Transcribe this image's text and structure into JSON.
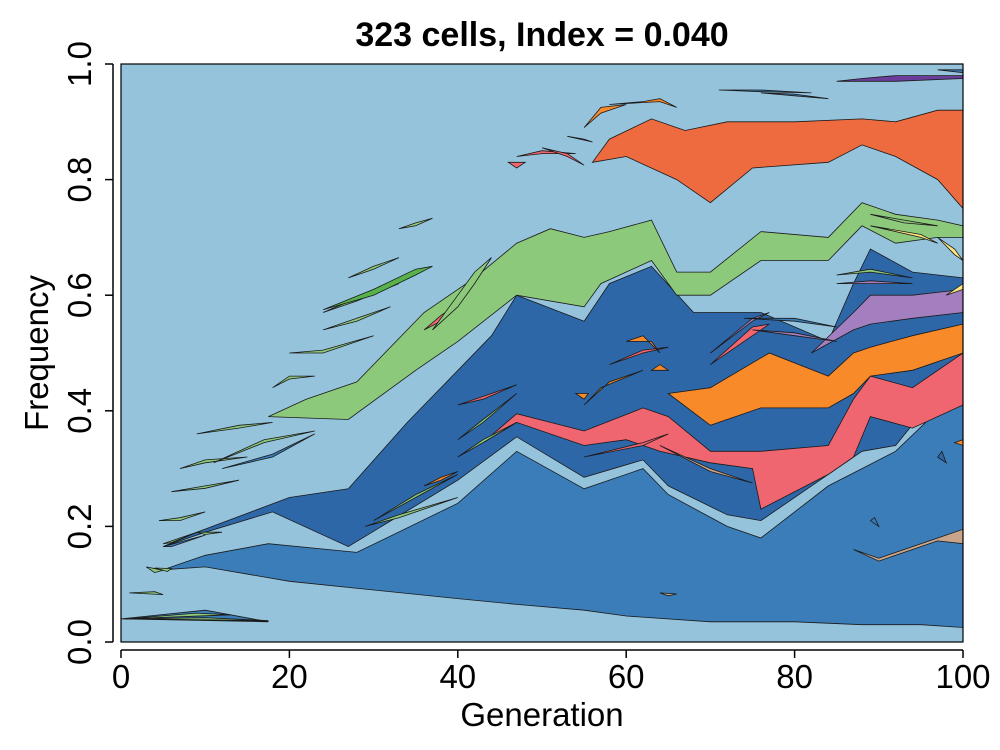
{
  "chart_data": {
    "type": "area",
    "subtype": "muller-plot",
    "title": "323 cells, Index = 0.040",
    "xlabel": "Generation",
    "ylabel": "Frequency",
    "xlim": [
      0,
      100
    ],
    "ylim": [
      0,
      1
    ],
    "x_ticks": [
      "0",
      "20",
      "40",
      "60",
      "80",
      "100"
    ],
    "y_ticks": [
      "0.0",
      "0.2",
      "0.4",
      "0.6",
      "0.8",
      "1.0"
    ],
    "grid": false,
    "legend": "none",
    "background_color": "#95c3dc",
    "series": [
      {
        "color": "#3a7db8",
        "lower": [
          [
            0,
            0.04
          ],
          [
            17.5,
            0.035
          ],
          [
            10,
            0.055
          ],
          [
            0,
            0.04
          ]
        ],
        "upper": []
      },
      {
        "color": "#3a7db8",
        "lower": [
          [
            5,
            0.125
          ],
          [
            10,
            0.13
          ],
          [
            20,
            0.105
          ],
          [
            30,
            0.09
          ],
          [
            40,
            0.075
          ],
          [
            47,
            0.065
          ],
          [
            55,
            0.055
          ],
          [
            60,
            0.045
          ],
          [
            70,
            0.035
          ],
          [
            80,
            0.035
          ],
          [
            88,
            0.03
          ],
          [
            95,
            0.03
          ],
          [
            100,
            0.025
          ]
        ],
        "upper": [
          [
            5,
            0.125
          ],
          [
            10,
            0.15
          ],
          [
            17.5,
            0.17
          ],
          [
            28,
            0.155
          ],
          [
            40,
            0.24
          ],
          [
            47,
            0.33
          ],
          [
            55,
            0.265
          ],
          [
            62,
            0.3
          ],
          [
            65,
            0.255
          ],
          [
            72,
            0.2
          ],
          [
            76,
            0.18
          ],
          [
            84,
            0.27
          ],
          [
            88,
            0.3
          ],
          [
            92,
            0.33
          ],
          [
            97,
            0.4
          ],
          [
            100,
            0.42
          ]
        ]
      },
      {
        "color": "#2e67a8",
        "lower": [
          [
            5,
            0.165
          ],
          [
            10,
            0.19
          ],
          [
            18,
            0.225
          ],
          [
            27,
            0.165
          ],
          [
            40,
            0.28
          ],
          [
            47,
            0.355
          ],
          [
            55,
            0.285
          ],
          [
            62,
            0.315
          ],
          [
            65,
            0.27
          ],
          [
            72,
            0.22
          ],
          [
            76,
            0.21
          ],
          [
            84,
            0.29
          ],
          [
            88,
            0.33
          ],
          [
            92,
            0.34
          ],
          [
            97,
            0.43
          ],
          [
            100,
            0.44
          ]
        ],
        "upper": [
          [
            5,
            0.165
          ],
          [
            9,
            0.19
          ],
          [
            20,
            0.25
          ],
          [
            27,
            0.265
          ],
          [
            34,
            0.38
          ],
          [
            44,
            0.53
          ],
          [
            47,
            0.6
          ],
          [
            55,
            0.555
          ],
          [
            58,
            0.62
          ],
          [
            63,
            0.65
          ],
          [
            68,
            0.57
          ],
          [
            76,
            0.57
          ],
          [
            84,
            0.52
          ],
          [
            87,
            0.62
          ],
          [
            89,
            0.68
          ],
          [
            94,
            0.64
          ],
          [
            100,
            0.63
          ]
        ]
      },
      {
        "color": "#ef6570",
        "lower": [
          [
            43,
            0.345
          ],
          [
            47,
            0.38
          ],
          [
            55,
            0.34
          ],
          [
            60,
            0.35
          ],
          [
            64,
            0.33
          ],
          [
            70,
            0.31
          ],
          [
            75,
            0.3
          ],
          [
            76,
            0.23
          ],
          [
            84,
            0.29
          ],
          [
            87,
            0.32
          ],
          [
            89,
            0.39
          ],
          [
            94,
            0.37
          ],
          [
            100,
            0.41
          ]
        ],
        "upper": [
          [
            43,
            0.345
          ],
          [
            47,
            0.395
          ],
          [
            55,
            0.365
          ],
          [
            62,
            0.405
          ],
          [
            65,
            0.39
          ],
          [
            70,
            0.33
          ],
          [
            76,
            0.33
          ],
          [
            84,
            0.34
          ],
          [
            87,
            0.42
          ],
          [
            89,
            0.46
          ],
          [
            94,
            0.44
          ],
          [
            100,
            0.5
          ]
        ]
      },
      {
        "color": "#f98a2a",
        "lower": [
          [
            65,
            0.43
          ],
          [
            70,
            0.375
          ],
          [
            76,
            0.405
          ],
          [
            84,
            0.405
          ],
          [
            87,
            0.43
          ],
          [
            89,
            0.46
          ],
          [
            94,
            0.47
          ],
          [
            100,
            0.5
          ]
        ],
        "upper": [
          [
            65,
            0.43
          ],
          [
            70,
            0.44
          ],
          [
            77,
            0.5
          ],
          [
            84,
            0.46
          ],
          [
            87,
            0.5
          ],
          [
            89,
            0.51
          ],
          [
            94,
            0.53
          ],
          [
            100,
            0.55
          ]
        ]
      },
      {
        "color": "#a47fbf",
        "lower": [
          [
            82,
            0.5
          ],
          [
            87,
            0.54
          ],
          [
            89,
            0.55
          ],
          [
            94,
            0.56
          ],
          [
            100,
            0.57
          ]
        ],
        "upper": [
          [
            82,
            0.5
          ],
          [
            87,
            0.57
          ],
          [
            89,
            0.6
          ],
          [
            94,
            0.6
          ],
          [
            100,
            0.61
          ]
        ]
      },
      {
        "color": "#8dc97a",
        "lower": [
          [
            17.5,
            0.39
          ],
          [
            27,
            0.385
          ],
          [
            35,
            0.47
          ],
          [
            40,
            0.52
          ],
          [
            47,
            0.6
          ],
          [
            55,
            0.58
          ],
          [
            57,
            0.62
          ],
          [
            63,
            0.66
          ],
          [
            66,
            0.6
          ],
          [
            70,
            0.6
          ],
          [
            76,
            0.66
          ],
          [
            84,
            0.66
          ],
          [
            88,
            0.72
          ],
          [
            92,
            0.69
          ],
          [
            97,
            0.7
          ],
          [
            100,
            0.7
          ]
        ],
        "upper": [
          [
            17.5,
            0.39
          ],
          [
            22,
            0.42
          ],
          [
            28,
            0.45
          ],
          [
            36,
            0.57
          ],
          [
            42,
            0.63
          ],
          [
            47,
            0.69
          ],
          [
            51,
            0.715
          ],
          [
            55,
            0.7
          ],
          [
            58,
            0.71
          ],
          [
            63,
            0.73
          ],
          [
            66,
            0.64
          ],
          [
            70,
            0.64
          ],
          [
            76,
            0.71
          ],
          [
            84,
            0.7
          ],
          [
            88,
            0.76
          ],
          [
            92,
            0.74
          ],
          [
            97,
            0.73
          ],
          [
            100,
            0.72
          ]
        ]
      },
      {
        "color": "#ee6a3f",
        "lower": [
          [
            56,
            0.83
          ],
          [
            60,
            0.84
          ],
          [
            66,
            0.8
          ],
          [
            70,
            0.76
          ],
          [
            75,
            0.82
          ],
          [
            84,
            0.83
          ],
          [
            88,
            0.86
          ],
          [
            92,
            0.84
          ],
          [
            97,
            0.8
          ],
          [
            100,
            0.75
          ]
        ],
        "upper": [
          [
            56,
            0.83
          ],
          [
            58,
            0.87
          ],
          [
            63,
            0.905
          ],
          [
            67,
            0.885
          ],
          [
            72,
            0.9
          ],
          [
            80,
            0.9
          ],
          [
            88,
            0.905
          ],
          [
            92,
            0.9
          ],
          [
            97,
            0.92
          ],
          [
            100,
            0.92
          ]
        ]
      },
      {
        "color": "#6a3d9a",
        "lower": [
          [
            85,
            0.97
          ],
          [
            92,
            0.97
          ],
          [
            100,
            0.975
          ]
        ],
        "upper": [
          [
            85,
            0.97
          ],
          [
            88,
            0.975
          ],
          [
            92,
            0.98
          ],
          [
            100,
            0.98
          ]
        ]
      }
    ]
  }
}
